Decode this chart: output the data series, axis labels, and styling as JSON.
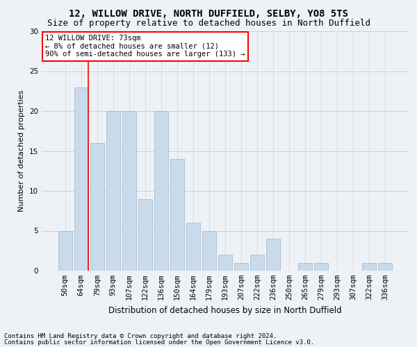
{
  "title1": "12, WILLOW DRIVE, NORTH DUFFIELD, SELBY, YO8 5TS",
  "title2": "Size of property relative to detached houses in North Duffield",
  "xlabel": "Distribution of detached houses by size in North Duffield",
  "ylabel": "Number of detached properties",
  "footnote1": "Contains HM Land Registry data © Crown copyright and database right 2024.",
  "footnote2": "Contains public sector information licensed under the Open Government Licence v3.0.",
  "annotation_line1": "12 WILLOW DRIVE: 73sqm",
  "annotation_line2": "← 8% of detached houses are smaller (12)",
  "annotation_line3": "90% of semi-detached houses are larger (133) →",
  "bar_color": "#c9daea",
  "bar_edge_color": "#aabcce",
  "red_line_x": 1.45,
  "categories": [
    "50sqm",
    "64sqm",
    "79sqm",
    "93sqm",
    "107sqm",
    "122sqm",
    "136sqm",
    "150sqm",
    "164sqm",
    "179sqm",
    "193sqm",
    "207sqm",
    "222sqm",
    "236sqm",
    "250sqm",
    "265sqm",
    "279sqm",
    "293sqm",
    "307sqm",
    "322sqm",
    "336sqm"
  ],
  "values": [
    5,
    23,
    16,
    20,
    20,
    9,
    20,
    14,
    6,
    5,
    2,
    1,
    2,
    4,
    0,
    1,
    1,
    0,
    0,
    1,
    1
  ],
  "ylim": [
    0,
    30
  ],
  "yticks": [
    0,
    5,
    10,
    15,
    20,
    25,
    30
  ],
  "background_color": "#eef2f7",
  "grid_color": "#c8d0dc",
  "title1_fontsize": 10,
  "title2_fontsize": 9,
  "xlabel_fontsize": 8.5,
  "ylabel_fontsize": 8,
  "tick_fontsize": 7.5,
  "footnote_fontsize": 6.5,
  "annotation_fontsize": 7.5
}
